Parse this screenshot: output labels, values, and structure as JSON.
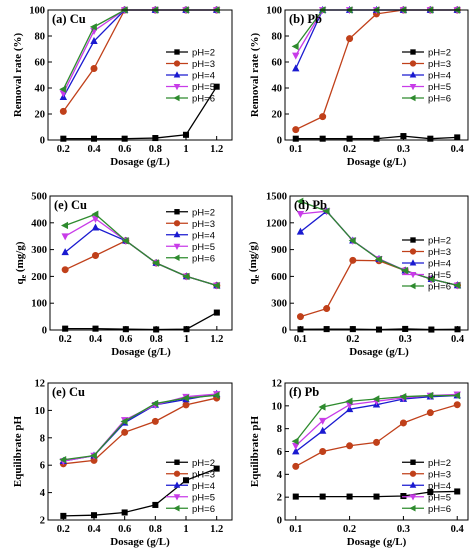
{
  "chart_data": [
    {
      "type": "line",
      "title": "(a) Cu",
      "xlabel": "Dosage (g/L)",
      "ylabel": "Removal rate (%)",
      "x": [
        0.2,
        0.4,
        0.6,
        0.8,
        1.0,
        1.2
      ],
      "xlim": [
        0.1,
        1.3
      ],
      "xticks": [
        0.2,
        0.4,
        0.6,
        0.8,
        1.0,
        1.2
      ],
      "ylim": [
        0,
        100
      ],
      "yticks": [
        0,
        20,
        40,
        60,
        80,
        100
      ],
      "legend": "center right",
      "series": [
        {
          "name": "pH=2",
          "color": "#000000",
          "marker": "square",
          "values": [
            1,
            1,
            1,
            1.5,
            4,
            41
          ]
        },
        {
          "name": "pH=3",
          "color": "#c0401a",
          "marker": "circle",
          "values": [
            22,
            55,
            100,
            100,
            100,
            100
          ]
        },
        {
          "name": "pH=4",
          "color": "#1a1ad0",
          "marker": "triangle-up",
          "values": [
            33,
            76,
            100,
            100,
            100,
            100
          ]
        },
        {
          "name": "pH=5",
          "color": "#c83ce8",
          "marker": "triangle-down",
          "values": [
            36,
            84,
            100,
            100,
            100,
            100
          ]
        },
        {
          "name": "pH=6",
          "color": "#2e8b2e",
          "marker": "triangle-left",
          "values": [
            39,
            87,
            100,
            100,
            100,
            100
          ]
        }
      ]
    },
    {
      "type": "line",
      "title": "(b) Pb",
      "xlabel": "Dosage (g/L)",
      "ylabel": "Removal rate (%)",
      "x": [
        0.1,
        0.15,
        0.2,
        0.25,
        0.3,
        0.35,
        0.4
      ],
      "xlim": [
        0.08,
        0.42
      ],
      "xticks": [
        0.1,
        0.2,
        0.3,
        0.4
      ],
      "ylim": [
        0,
        100
      ],
      "yticks": [
        0,
        20,
        40,
        60,
        80,
        100
      ],
      "legend": "center right",
      "series": [
        {
          "name": "pH=2",
          "color": "#000000",
          "marker": "square",
          "values": [
            1,
            1,
            1,
            1,
            3,
            1,
            2
          ]
        },
        {
          "name": "pH=3",
          "color": "#c0401a",
          "marker": "circle",
          "values": [
            8,
            18,
            78,
            97,
            100,
            100,
            100
          ]
        },
        {
          "name": "pH=4",
          "color": "#1a1ad0",
          "marker": "triangle-up",
          "values": [
            55,
            100,
            100,
            100,
            100,
            100,
            100
          ]
        },
        {
          "name": "pH=5",
          "color": "#c83ce8",
          "marker": "triangle-down",
          "values": [
            65,
            100,
            100,
            100,
            100,
            100,
            100
          ]
        },
        {
          "name": "pH=6",
          "color": "#2e8b2e",
          "marker": "triangle-left",
          "values": [
            72,
            100,
            100,
            100,
            100,
            100,
            100
          ]
        }
      ]
    },
    {
      "type": "line",
      "title": "(e) Cu",
      "xlabel": "Dosage (g/L)",
      "ylabel": {
        "base": "q",
        "sub": "e",
        "rest": " (mg/g)"
      },
      "x": [
        0.2,
        0.4,
        0.6,
        0.8,
        1.0,
        1.2
      ],
      "xlim": [
        0.1,
        1.3
      ],
      "xticks": [
        0.2,
        0.4,
        0.6,
        0.8,
        1.0,
        1.2
      ],
      "ylim": [
        0,
        500
      ],
      "yticks": [
        0,
        100,
        200,
        300,
        400,
        500
      ],
      "legend": "upper right",
      "series": [
        {
          "name": "pH=2",
          "color": "#000000",
          "marker": "square",
          "values": [
            5,
            5,
            3,
            2,
            3,
            65
          ]
        },
        {
          "name": "pH=3",
          "color": "#c0401a",
          "marker": "circle",
          "values": [
            225,
            278,
            333,
            250,
            200,
            166
          ]
        },
        {
          "name": "pH=4",
          "color": "#1a1ad0",
          "marker": "triangle-up",
          "values": [
            290,
            382,
            333,
            250,
            200,
            166
          ]
        },
        {
          "name": "pH=5",
          "color": "#c83ce8",
          "marker": "triangle-down",
          "values": [
            350,
            415,
            333,
            250,
            200,
            166
          ]
        },
        {
          "name": "pH=6",
          "color": "#2e8b2e",
          "marker": "triangle-left",
          "values": [
            390,
            432,
            333,
            250,
            200,
            166
          ]
        }
      ]
    },
    {
      "type": "line",
      "title": "(d) Pb",
      "xlabel": "Dosage (g/L)",
      "ylabel": {
        "base": "q",
        "sub": "e",
        "rest": " (mg/g)"
      },
      "x": [
        0.1,
        0.15,
        0.2,
        0.25,
        0.3,
        0.35,
        0.4
      ],
      "xlim": [
        0.08,
        0.42
      ],
      "xticks": [
        0.1,
        0.2,
        0.3,
        0.4
      ],
      "ylim": [
        0,
        1500
      ],
      "yticks": [
        0,
        300,
        600,
        900,
        1200,
        1500
      ],
      "legend": "center right",
      "series": [
        {
          "name": "pH=2",
          "color": "#000000",
          "marker": "square",
          "values": [
            8,
            10,
            10,
            5,
            12,
            5,
            8
          ]
        },
        {
          "name": "pH=3",
          "color": "#c0401a",
          "marker": "circle",
          "values": [
            150,
            240,
            780,
            775,
            665,
            570,
            500
          ]
        },
        {
          "name": "pH=4",
          "color": "#1a1ad0",
          "marker": "triangle-up",
          "values": [
            1100,
            1330,
            1000,
            795,
            665,
            570,
            500
          ]
        },
        {
          "name": "pH=5",
          "color": "#c83ce8",
          "marker": "triangle-down",
          "values": [
            1300,
            1330,
            1000,
            795,
            665,
            570,
            500
          ]
        },
        {
          "name": "pH=6",
          "color": "#2e8b2e",
          "marker": "triangle-left",
          "values": [
            1440,
            1330,
            1000,
            790,
            665,
            570,
            500
          ]
        }
      ]
    },
    {
      "type": "line",
      "title": "(e) Cu",
      "xlabel": "Dosage (g/L)",
      "ylabel": "Equilibrate pH",
      "x": [
        0.2,
        0.4,
        0.6,
        0.8,
        1.0,
        1.2
      ],
      "xlim": [
        0.1,
        1.3
      ],
      "xticks": [
        0.2,
        0.4,
        0.6,
        0.8,
        1.0,
        1.2
      ],
      "ylim": [
        2,
        12
      ],
      "yticks": [
        2,
        4,
        6,
        8,
        10,
        12
      ],
      "legend": "lower right",
      "series": [
        {
          "name": "pH=2",
          "color": "#000000",
          "marker": "square",
          "values": [
            2.3,
            2.35,
            2.55,
            3.1,
            4.9,
            5.75
          ]
        },
        {
          "name": "pH=3",
          "color": "#c0401a",
          "marker": "circle",
          "values": [
            6.1,
            6.35,
            8.4,
            9.2,
            10.4,
            10.9
          ]
        },
        {
          "name": "pH=4",
          "color": "#1a1ad0",
          "marker": "triangle-up",
          "values": [
            6.3,
            6.7,
            9.1,
            10.4,
            10.8,
            11.2
          ]
        },
        {
          "name": "pH=5",
          "color": "#c83ce8",
          "marker": "triangle-down",
          "values": [
            6.3,
            6.7,
            9.3,
            10.4,
            11.0,
            11.2
          ]
        },
        {
          "name": "pH=6",
          "color": "#2e8b2e",
          "marker": "triangle-left",
          "values": [
            6.4,
            6.7,
            9.2,
            10.5,
            10.9,
            11.1
          ]
        }
      ]
    },
    {
      "type": "line",
      "title": "(f) Pb",
      "xlabel": "Dosage (g/L)",
      "ylabel": "Equilibrate pH",
      "x": [
        0.1,
        0.15,
        0.2,
        0.25,
        0.3,
        0.35,
        0.4
      ],
      "xlim": [
        0.08,
        0.42
      ],
      "xticks": [
        0.1,
        0.2,
        0.3,
        0.4
      ],
      "ylim": [
        0,
        12
      ],
      "yticks": [
        0,
        2,
        4,
        6,
        8,
        10,
        12
      ],
      "legend": "lower right",
      "series": [
        {
          "name": "pH=2",
          "color": "#000000",
          "marker": "square",
          "values": [
            2.05,
            2.05,
            2.05,
            2.05,
            2.1,
            2.45,
            2.5
          ]
        },
        {
          "name": "pH=3",
          "color": "#c0401a",
          "marker": "circle",
          "values": [
            4.7,
            6.0,
            6.5,
            6.8,
            8.5,
            9.4,
            10.1
          ]
        },
        {
          "name": "pH=4",
          "color": "#1a1ad0",
          "marker": "triangle-up",
          "values": [
            6.0,
            7.8,
            9.7,
            10.1,
            10.6,
            10.8,
            10.9
          ]
        },
        {
          "name": "pH=5",
          "color": "#c83ce8",
          "marker": "triangle-down",
          "values": [
            6.5,
            8.7,
            10.1,
            10.4,
            10.7,
            10.9,
            11.0
          ]
        },
        {
          "name": "pH=6",
          "color": "#2e8b2e",
          "marker": "triangle-left",
          "values": [
            6.9,
            9.9,
            10.4,
            10.6,
            10.8,
            10.9,
            10.9
          ]
        }
      ]
    }
  ]
}
